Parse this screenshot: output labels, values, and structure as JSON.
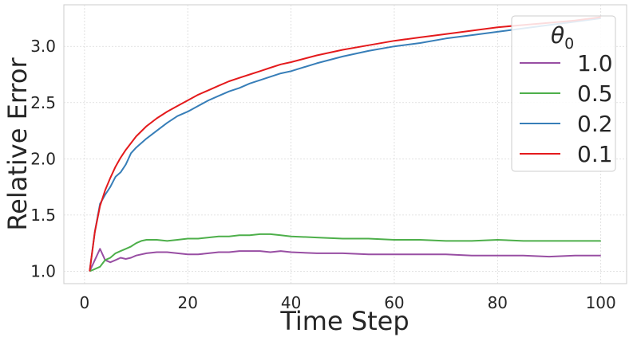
{
  "chart_data": {
    "type": "line",
    "xlabel": "Time Step",
    "ylabel": "Relative Error",
    "xlim": [
      -4,
      105
    ],
    "ylim": [
      0.89,
      3.37
    ],
    "xticks": [
      "0",
      "20",
      "40",
      "60",
      "80",
      "100"
    ],
    "xtick_values": [
      0,
      20,
      40,
      60,
      80,
      100
    ],
    "yticks": [
      "1.0",
      "1.5",
      "2.0",
      "2.5",
      "3.0"
    ],
    "ytick_values": [
      1.0,
      1.5,
      2.0,
      2.5,
      3.0
    ],
    "grid": true,
    "legend": {
      "title_base": "θ",
      "title_sub": "0",
      "placement": "top-right"
    },
    "series": [
      {
        "name": "1.0",
        "color": "#984ea3",
        "x": [
          1,
          2,
          3,
          4,
          5,
          6,
          7,
          8,
          9,
          10,
          12,
          14,
          16,
          18,
          20,
          22,
          24,
          26,
          28,
          30,
          32,
          34,
          36,
          38,
          40,
          45,
          50,
          55,
          60,
          65,
          70,
          75,
          80,
          85,
          90,
          95,
          100
        ],
        "y": [
          1.0,
          1.1,
          1.2,
          1.1,
          1.08,
          1.1,
          1.12,
          1.11,
          1.12,
          1.14,
          1.16,
          1.17,
          1.17,
          1.16,
          1.15,
          1.15,
          1.16,
          1.17,
          1.17,
          1.18,
          1.18,
          1.18,
          1.17,
          1.18,
          1.17,
          1.16,
          1.16,
          1.15,
          1.15,
          1.15,
          1.15,
          1.14,
          1.14,
          1.14,
          1.13,
          1.14,
          1.14
        ]
      },
      {
        "name": "0.5",
        "color": "#4daf4a",
        "x": [
          1,
          2,
          3,
          4,
          5,
          6,
          7,
          8,
          9,
          10,
          11,
          12,
          14,
          16,
          18,
          20,
          22,
          24,
          26,
          28,
          30,
          32,
          34,
          36,
          38,
          40,
          45,
          50,
          55,
          60,
          65,
          70,
          75,
          80,
          85,
          90,
          95,
          100
        ],
        "y": [
          1.0,
          1.02,
          1.04,
          1.1,
          1.12,
          1.16,
          1.18,
          1.2,
          1.22,
          1.25,
          1.27,
          1.28,
          1.28,
          1.27,
          1.28,
          1.29,
          1.29,
          1.3,
          1.31,
          1.31,
          1.32,
          1.32,
          1.33,
          1.33,
          1.32,
          1.31,
          1.3,
          1.29,
          1.29,
          1.28,
          1.28,
          1.27,
          1.27,
          1.28,
          1.27,
          1.27,
          1.27,
          1.27
        ]
      },
      {
        "name": "0.2",
        "color": "#377eb8",
        "x": [
          1,
          2,
          3,
          4,
          5,
          6,
          7,
          8,
          9,
          10,
          12,
          14,
          16,
          18,
          20,
          22,
          24,
          26,
          28,
          30,
          32,
          34,
          36,
          38,
          40,
          45,
          50,
          55,
          60,
          65,
          70,
          75,
          80,
          85,
          90,
          95,
          100
        ],
        "y": [
          1.0,
          1.35,
          1.6,
          1.68,
          1.75,
          1.84,
          1.88,
          1.95,
          2.05,
          2.1,
          2.18,
          2.25,
          2.32,
          2.38,
          2.42,
          2.47,
          2.52,
          2.56,
          2.6,
          2.63,
          2.67,
          2.7,
          2.73,
          2.76,
          2.78,
          2.85,
          2.91,
          2.96,
          3.0,
          3.03,
          3.07,
          3.1,
          3.13,
          3.16,
          3.19,
          3.22,
          3.25
        ]
      },
      {
        "name": "0.1",
        "color": "#e41a1c",
        "x": [
          1,
          2,
          3,
          4,
          5,
          6,
          7,
          8,
          9,
          10,
          12,
          14,
          16,
          18,
          20,
          22,
          24,
          26,
          28,
          30,
          32,
          34,
          36,
          38,
          40,
          45,
          50,
          55,
          60,
          65,
          70,
          75,
          80,
          85,
          90,
          95,
          100
        ],
        "y": [
          1.0,
          1.35,
          1.58,
          1.72,
          1.83,
          1.93,
          2.01,
          2.08,
          2.14,
          2.2,
          2.29,
          2.36,
          2.42,
          2.47,
          2.52,
          2.57,
          2.61,
          2.65,
          2.69,
          2.72,
          2.75,
          2.78,
          2.81,
          2.84,
          2.86,
          2.92,
          2.97,
          3.01,
          3.05,
          3.08,
          3.11,
          3.14,
          3.17,
          3.19,
          3.21,
          3.23,
          3.26
        ]
      }
    ]
  }
}
